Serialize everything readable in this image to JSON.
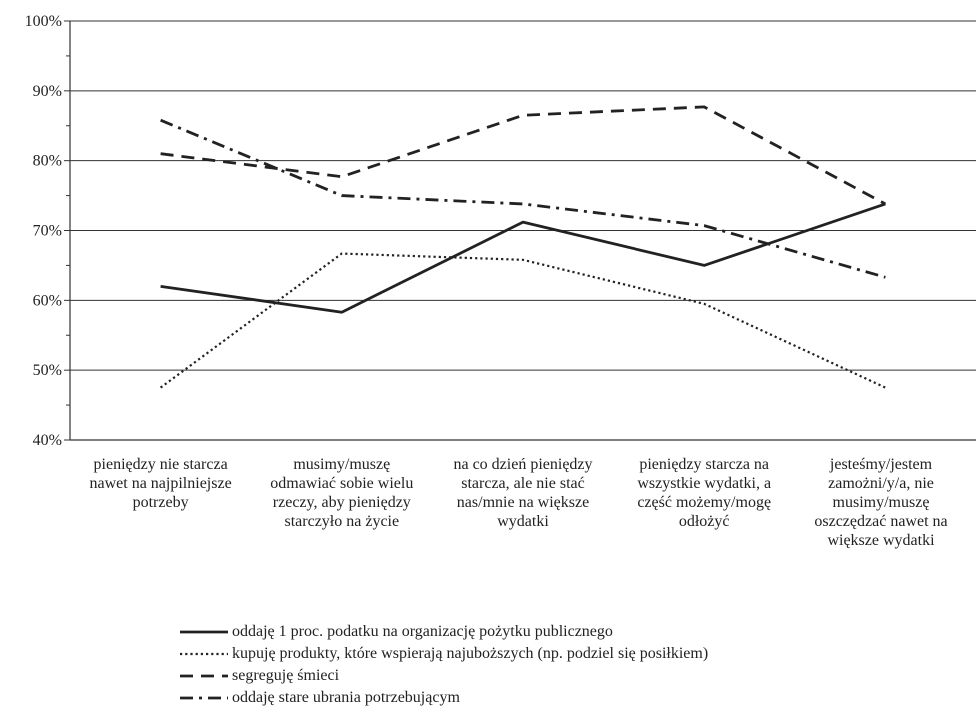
{
  "chart_data": {
    "type": "line",
    "categories": [
      "pieniędzy nie starcza nawet na najpilniejsze potrzeby",
      "musimy/muszę odmawiać sobie wielu rzeczy, aby pieniędzy starczyło na życie",
      "na co dzień pieniędzy starcza, ale nie stać nas/mnie na większe wydatki",
      "pieniędzy starcza na wszystkie wydatki, a część możemy/mogę odłożyć",
      "jesteśmy/jestem zamożni/y/a, nie musimy/muszę oszczędzać nawet na większe wydatki"
    ],
    "category_lines": [
      [
        "pieniędzy nie starcza",
        "nawet na najpilniejsze",
        "potrzeby"
      ],
      [
        "musimy/muszę",
        "odmawiać sobie wielu",
        "rzeczy, aby pieniędzy",
        "starczyło na życie"
      ],
      [
        "na co dzień pieniędzy",
        "starcza, ale nie stać",
        "nas/mnie na większe",
        "wydatki"
      ],
      [
        "pieniędzy starcza na",
        "wszystkie wydatki, a",
        "część możemy/mogę",
        "odłożyć"
      ],
      [
        "jesteśmy/jestem",
        "zamożni/y/a, nie",
        "musimy/muszę",
        "oszczędzać nawet na",
        "większe wydatki"
      ]
    ],
    "series": [
      {
        "name": "oddaję 1 proc. podatku na  organizację pożytku publicznego",
        "style": "solid",
        "values": [
          62,
          58.3,
          71.2,
          65,
          73.8
        ]
      },
      {
        "name": "kupuję produkty, które wspierają najuboższych (np. podziel się posiłkiem)",
        "style": "dotted",
        "values": [
          47.5,
          66.7,
          65.8,
          59.5,
          47.5
        ]
      },
      {
        "name": "segreguję śmieci",
        "style": "dashed",
        "values": [
          81,
          77.7,
          86.5,
          87.7,
          73.8
        ]
      },
      {
        "name": "oddaję stare ubrania potrzebującym",
        "style": "dashdot",
        "values": [
          85.8,
          75,
          73.8,
          70.7,
          63.3
        ]
      }
    ],
    "y_ticks": [
      "40%",
      "50%",
      "60%",
      "70%",
      "80%",
      "90%",
      "100%"
    ],
    "ylim": [
      40,
      100
    ],
    "grid": true,
    "legend_position": "bottom",
    "colors": {
      "line": "#222222",
      "grid": "#333333"
    }
  }
}
